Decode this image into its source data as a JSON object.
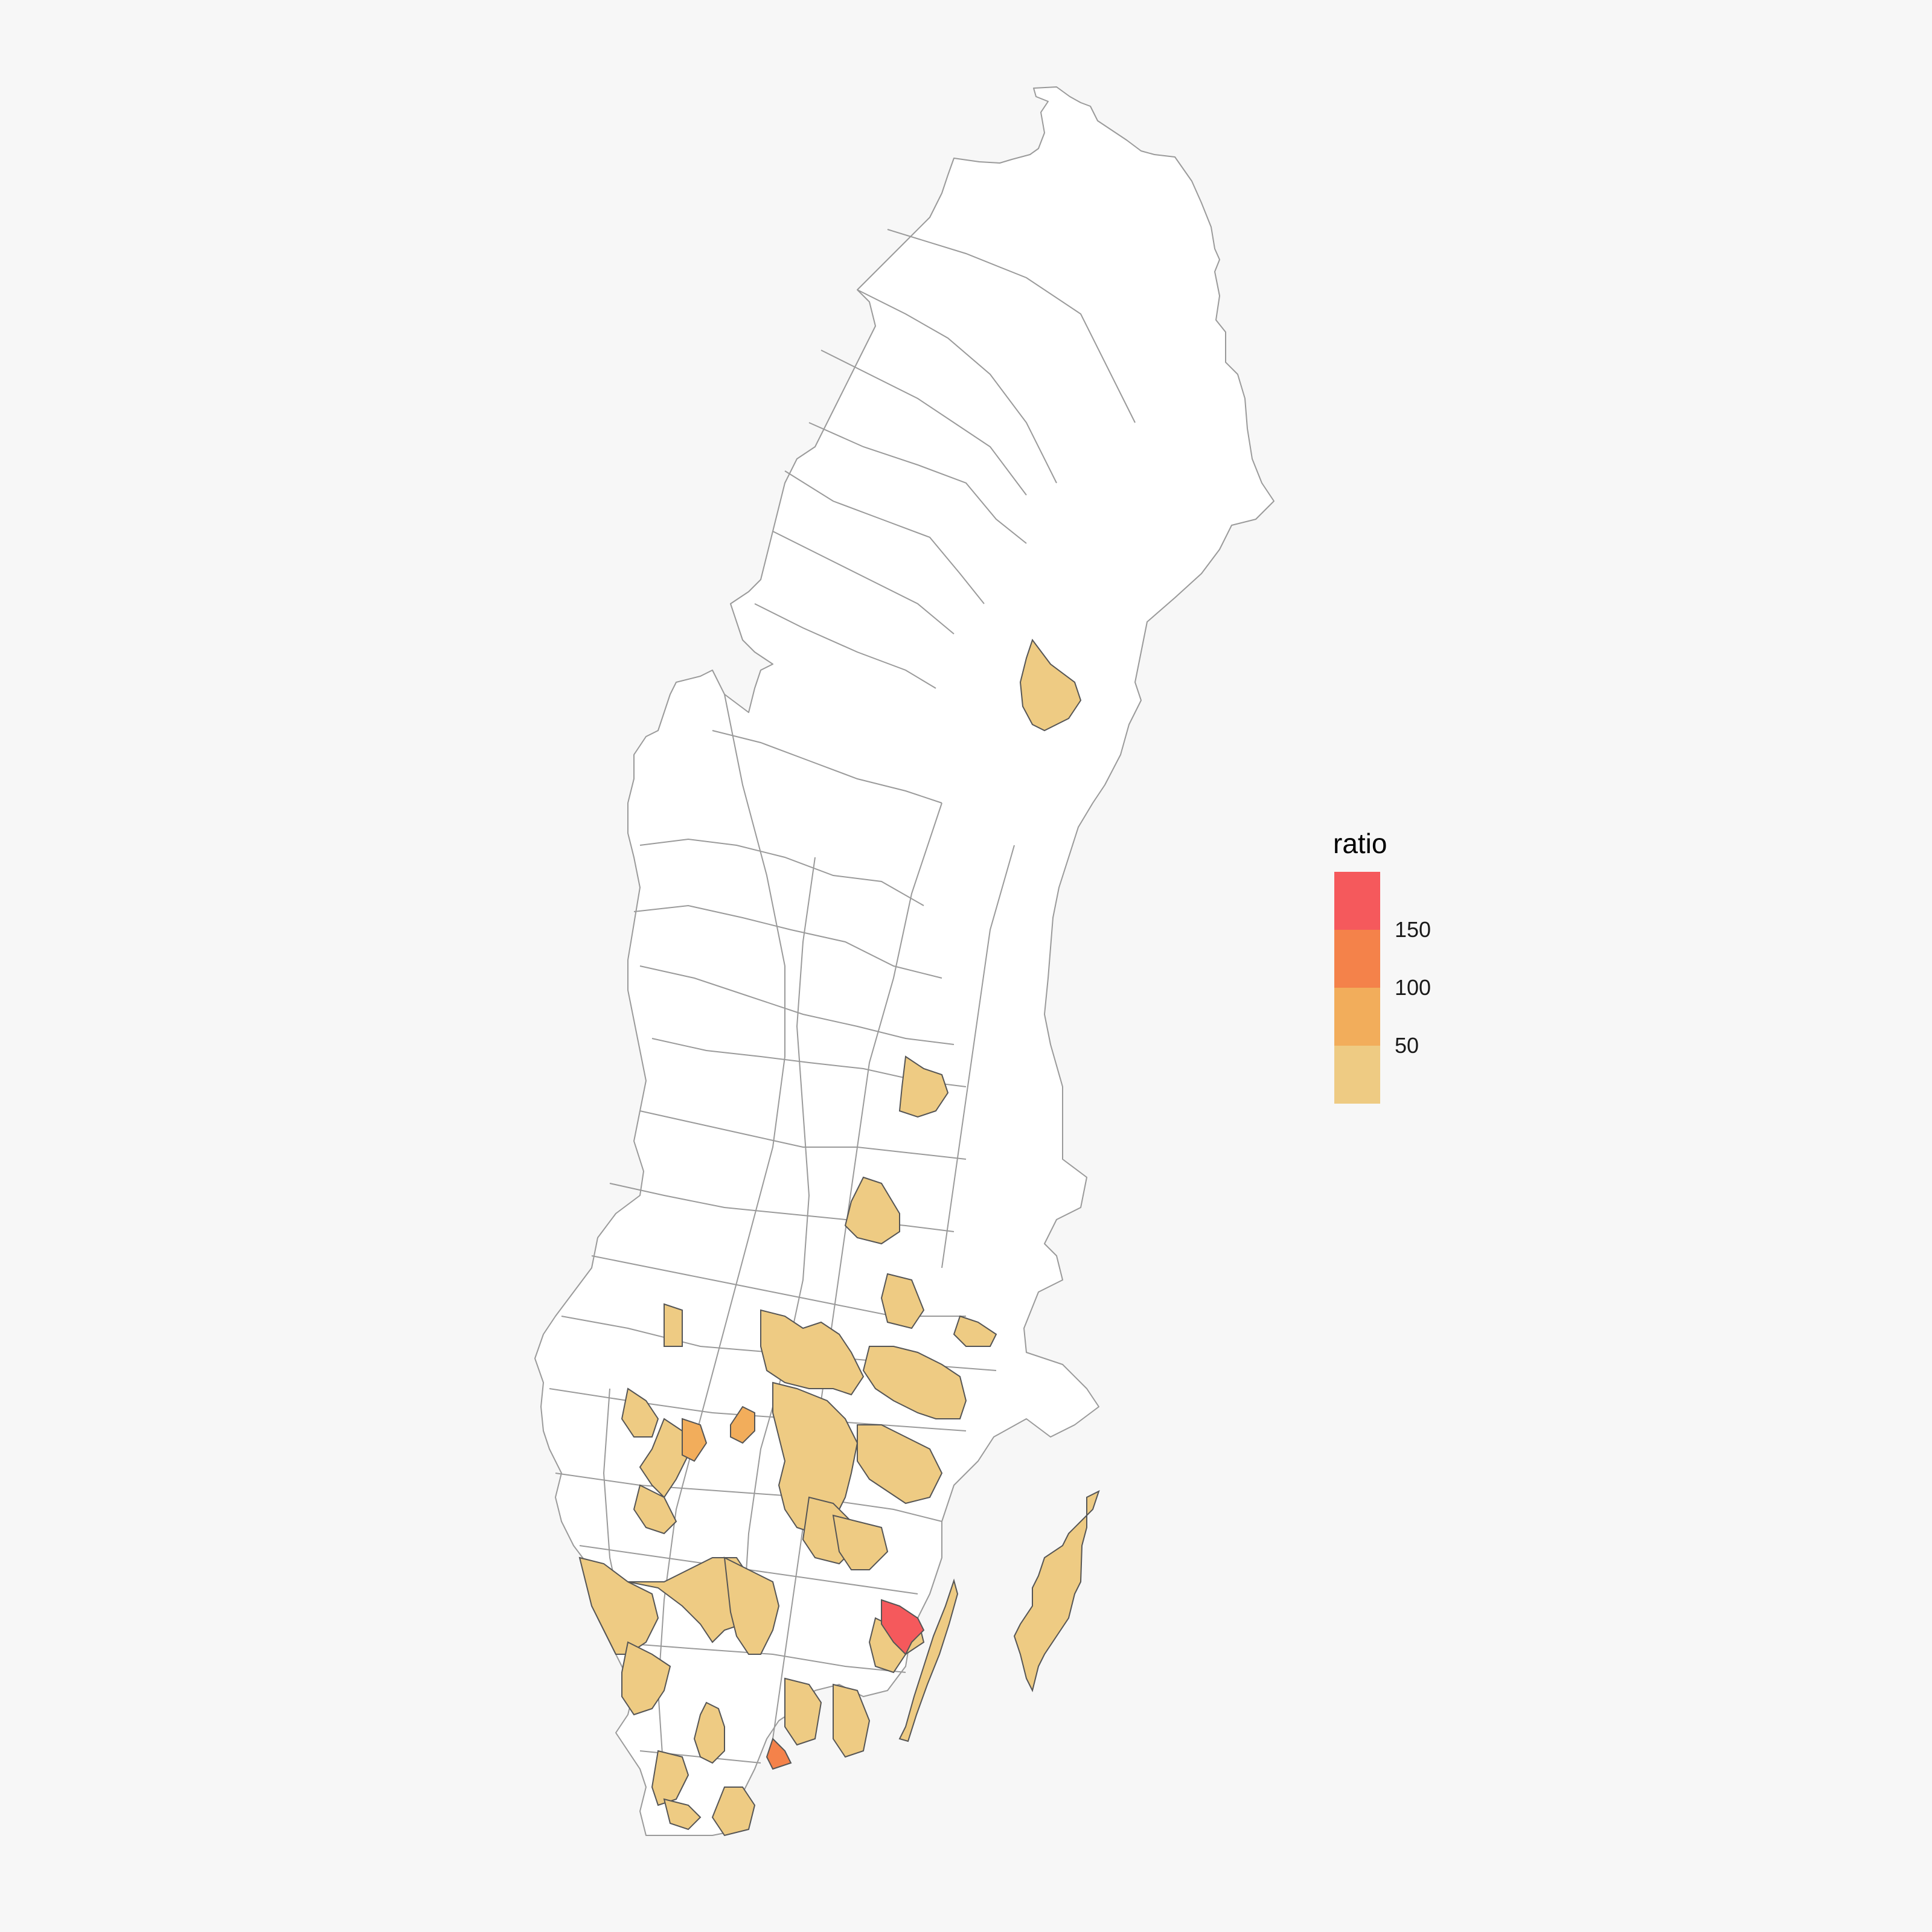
{
  "map": {
    "legend": {
      "title": "ratio",
      "ticks": [
        {
          "label": "150",
          "value": 150
        },
        {
          "label": "100",
          "value": 100
        },
        {
          "label": "50",
          "value": 50
        }
      ],
      "bins": [
        {
          "color": "#f5595c"
        },
        {
          "color": "#f4824a"
        },
        {
          "color": "#f2ad5b"
        },
        {
          "color": "#eecb83"
        }
      ]
    },
    "colors": {
      "background": "#f7f7f7",
      "unshaded_fill": "#ffffff",
      "border": "#9a9a9a",
      "shaded_border": "#555555"
    }
  }
}
